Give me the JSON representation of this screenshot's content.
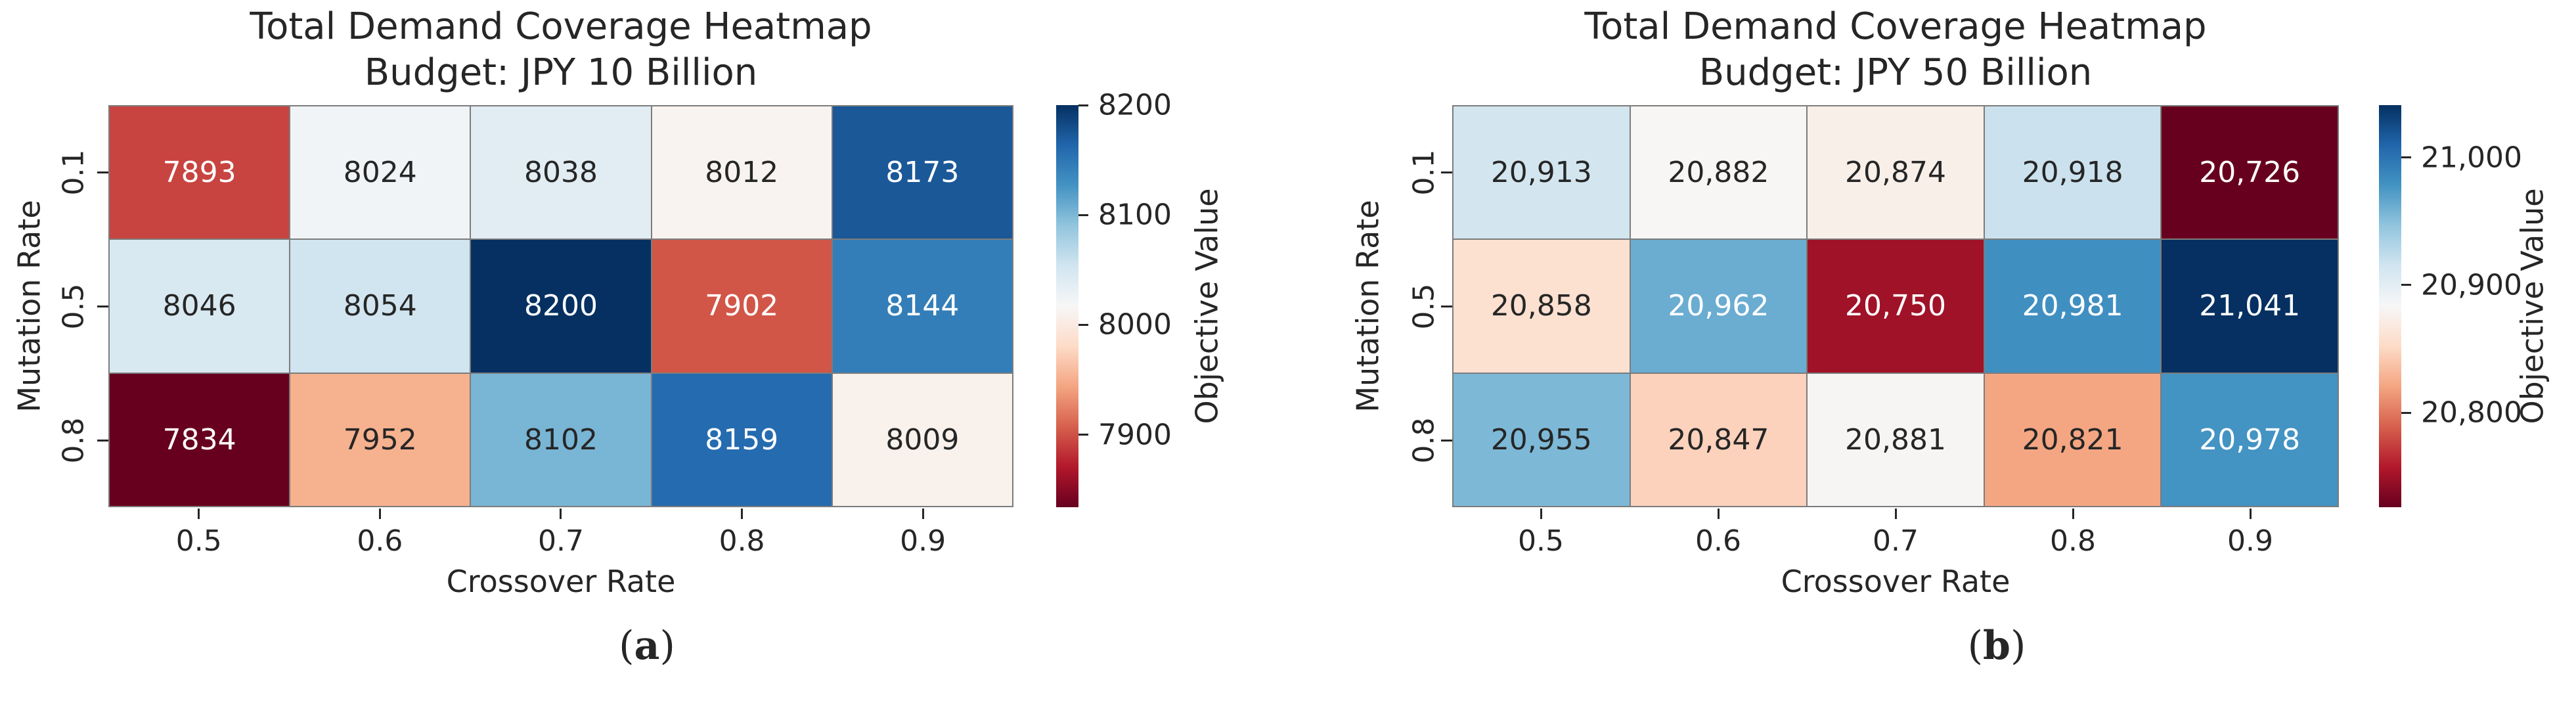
{
  "colormap": {
    "name": "RdBu",
    "stops_top_to_bottom": [
      "#053061",
      "#2166ac",
      "#4393c3",
      "#92c5de",
      "#d1e5f0",
      "#f7f7f7",
      "#fddbc7",
      "#f4a582",
      "#d6604d",
      "#b2182b",
      "#67001f"
    ]
  },
  "chart_data": [
    {
      "type": "heatmap",
      "title_line1": "Total Demand Coverage Heatmap",
      "title_line2": "Budget: JPY 10 Billion",
      "xlabel": "Crossover Rate",
      "ylabel": "Mutation Rate",
      "x_ticks": [
        "0.5",
        "0.6",
        "0.7",
        "0.8",
        "0.9"
      ],
      "y_ticks": [
        "0.1",
        "0.5",
        "0.8"
      ],
      "values": [
        [
          7893,
          8024,
          8038,
          8012,
          8173
        ],
        [
          8046,
          8054,
          8200,
          7902,
          8144
        ],
        [
          7834,
          7952,
          8102,
          8159,
          8009
        ]
      ],
      "cell_labels": [
        [
          "7893",
          "8024",
          "8038",
          "8012",
          "8173"
        ],
        [
          "8046",
          "8054",
          "8200",
          "7902",
          "8144"
        ],
        [
          "7834",
          "7952",
          "8102",
          "8159",
          "8009"
        ]
      ],
      "cell_colors": [
        [
          "#c84440",
          "#f0f4f6",
          "#e1edf3",
          "#f8f3f0",
          "#1a5898"
        ],
        [
          "#d9e9f1",
          "#d1e5f0",
          "#053061",
          "#d25648",
          "#337eb8"
        ],
        [
          "#67001f",
          "#f6b18f",
          "#79b5d5",
          "#256baf",
          "#f8f1ec"
        ]
      ],
      "text_colors": [
        [
          "#ffffff",
          "#262626",
          "#262626",
          "#262626",
          "#ffffff"
        ],
        [
          "#262626",
          "#262626",
          "#ffffff",
          "#ffffff",
          "#ffffff"
        ],
        [
          "#ffffff",
          "#262626",
          "#262626",
          "#ffffff",
          "#262626"
        ]
      ],
      "vmin": 7834,
      "vmax": 8200,
      "colorbar": {
        "label": "Objective Value",
        "ticks": [
          {
            "label": "8200",
            "value": 8200
          },
          {
            "label": "8100",
            "value": 8100
          },
          {
            "label": "8000",
            "value": 8000
          },
          {
            "label": "7900",
            "value": 7900
          }
        ]
      },
      "panel_label": {
        "open": "(",
        "letter": "a",
        "close": ")"
      }
    },
    {
      "type": "heatmap",
      "title_line1": "Total Demand Coverage Heatmap",
      "title_line2": "Budget: JPY 50 Billion",
      "xlabel": "Crossover Rate",
      "ylabel": "Mutation Rate",
      "x_ticks": [
        "0.5",
        "0.6",
        "0.7",
        "0.8",
        "0.9"
      ],
      "y_ticks": [
        "0.1",
        "0.5",
        "0.8"
      ],
      "values": [
        [
          20913,
          20882,
          20874,
          20918,
          20726
        ],
        [
          20858,
          20962,
          20750,
          20981,
          21041
        ],
        [
          20955,
          20847,
          20881,
          20821,
          20978
        ]
      ],
      "cell_labels": [
        [
          "20,913",
          "20,882",
          "20,874",
          "20,918",
          "20,726"
        ],
        [
          "20,858",
          "20,962",
          "20,750",
          "20,981",
          "21,041"
        ],
        [
          "20,955",
          "20,847",
          "20,881",
          "20,821",
          "20,978"
        ]
      ],
      "cell_colors": [
        [
          "#d3e6f0",
          "#f7f6f5",
          "#f9efe9",
          "#cbe2ee",
          "#67001f"
        ],
        [
          "#fce0d0",
          "#6bacd1",
          "#a01228",
          "#408fc1",
          "#053061"
        ],
        [
          "#7db8d7",
          "#fcd2bc",
          "#f7f5f3",
          "#f4a683",
          "#4393c3"
        ]
      ],
      "text_colors": [
        [
          "#262626",
          "#262626",
          "#262626",
          "#262626",
          "#ffffff"
        ],
        [
          "#262626",
          "#ffffff",
          "#ffffff",
          "#ffffff",
          "#ffffff"
        ],
        [
          "#262626",
          "#262626",
          "#262626",
          "#262626",
          "#ffffff"
        ]
      ],
      "vmin": 20726,
      "vmax": 21041,
      "colorbar": {
        "label": "Objective Value",
        "ticks": [
          {
            "label": "21,000",
            "value": 21000
          },
          {
            "label": "20,900",
            "value": 20900
          },
          {
            "label": "20,800",
            "value": 20800
          }
        ]
      },
      "panel_label": {
        "open": "(",
        "letter": "b",
        "close": ")"
      }
    }
  ]
}
